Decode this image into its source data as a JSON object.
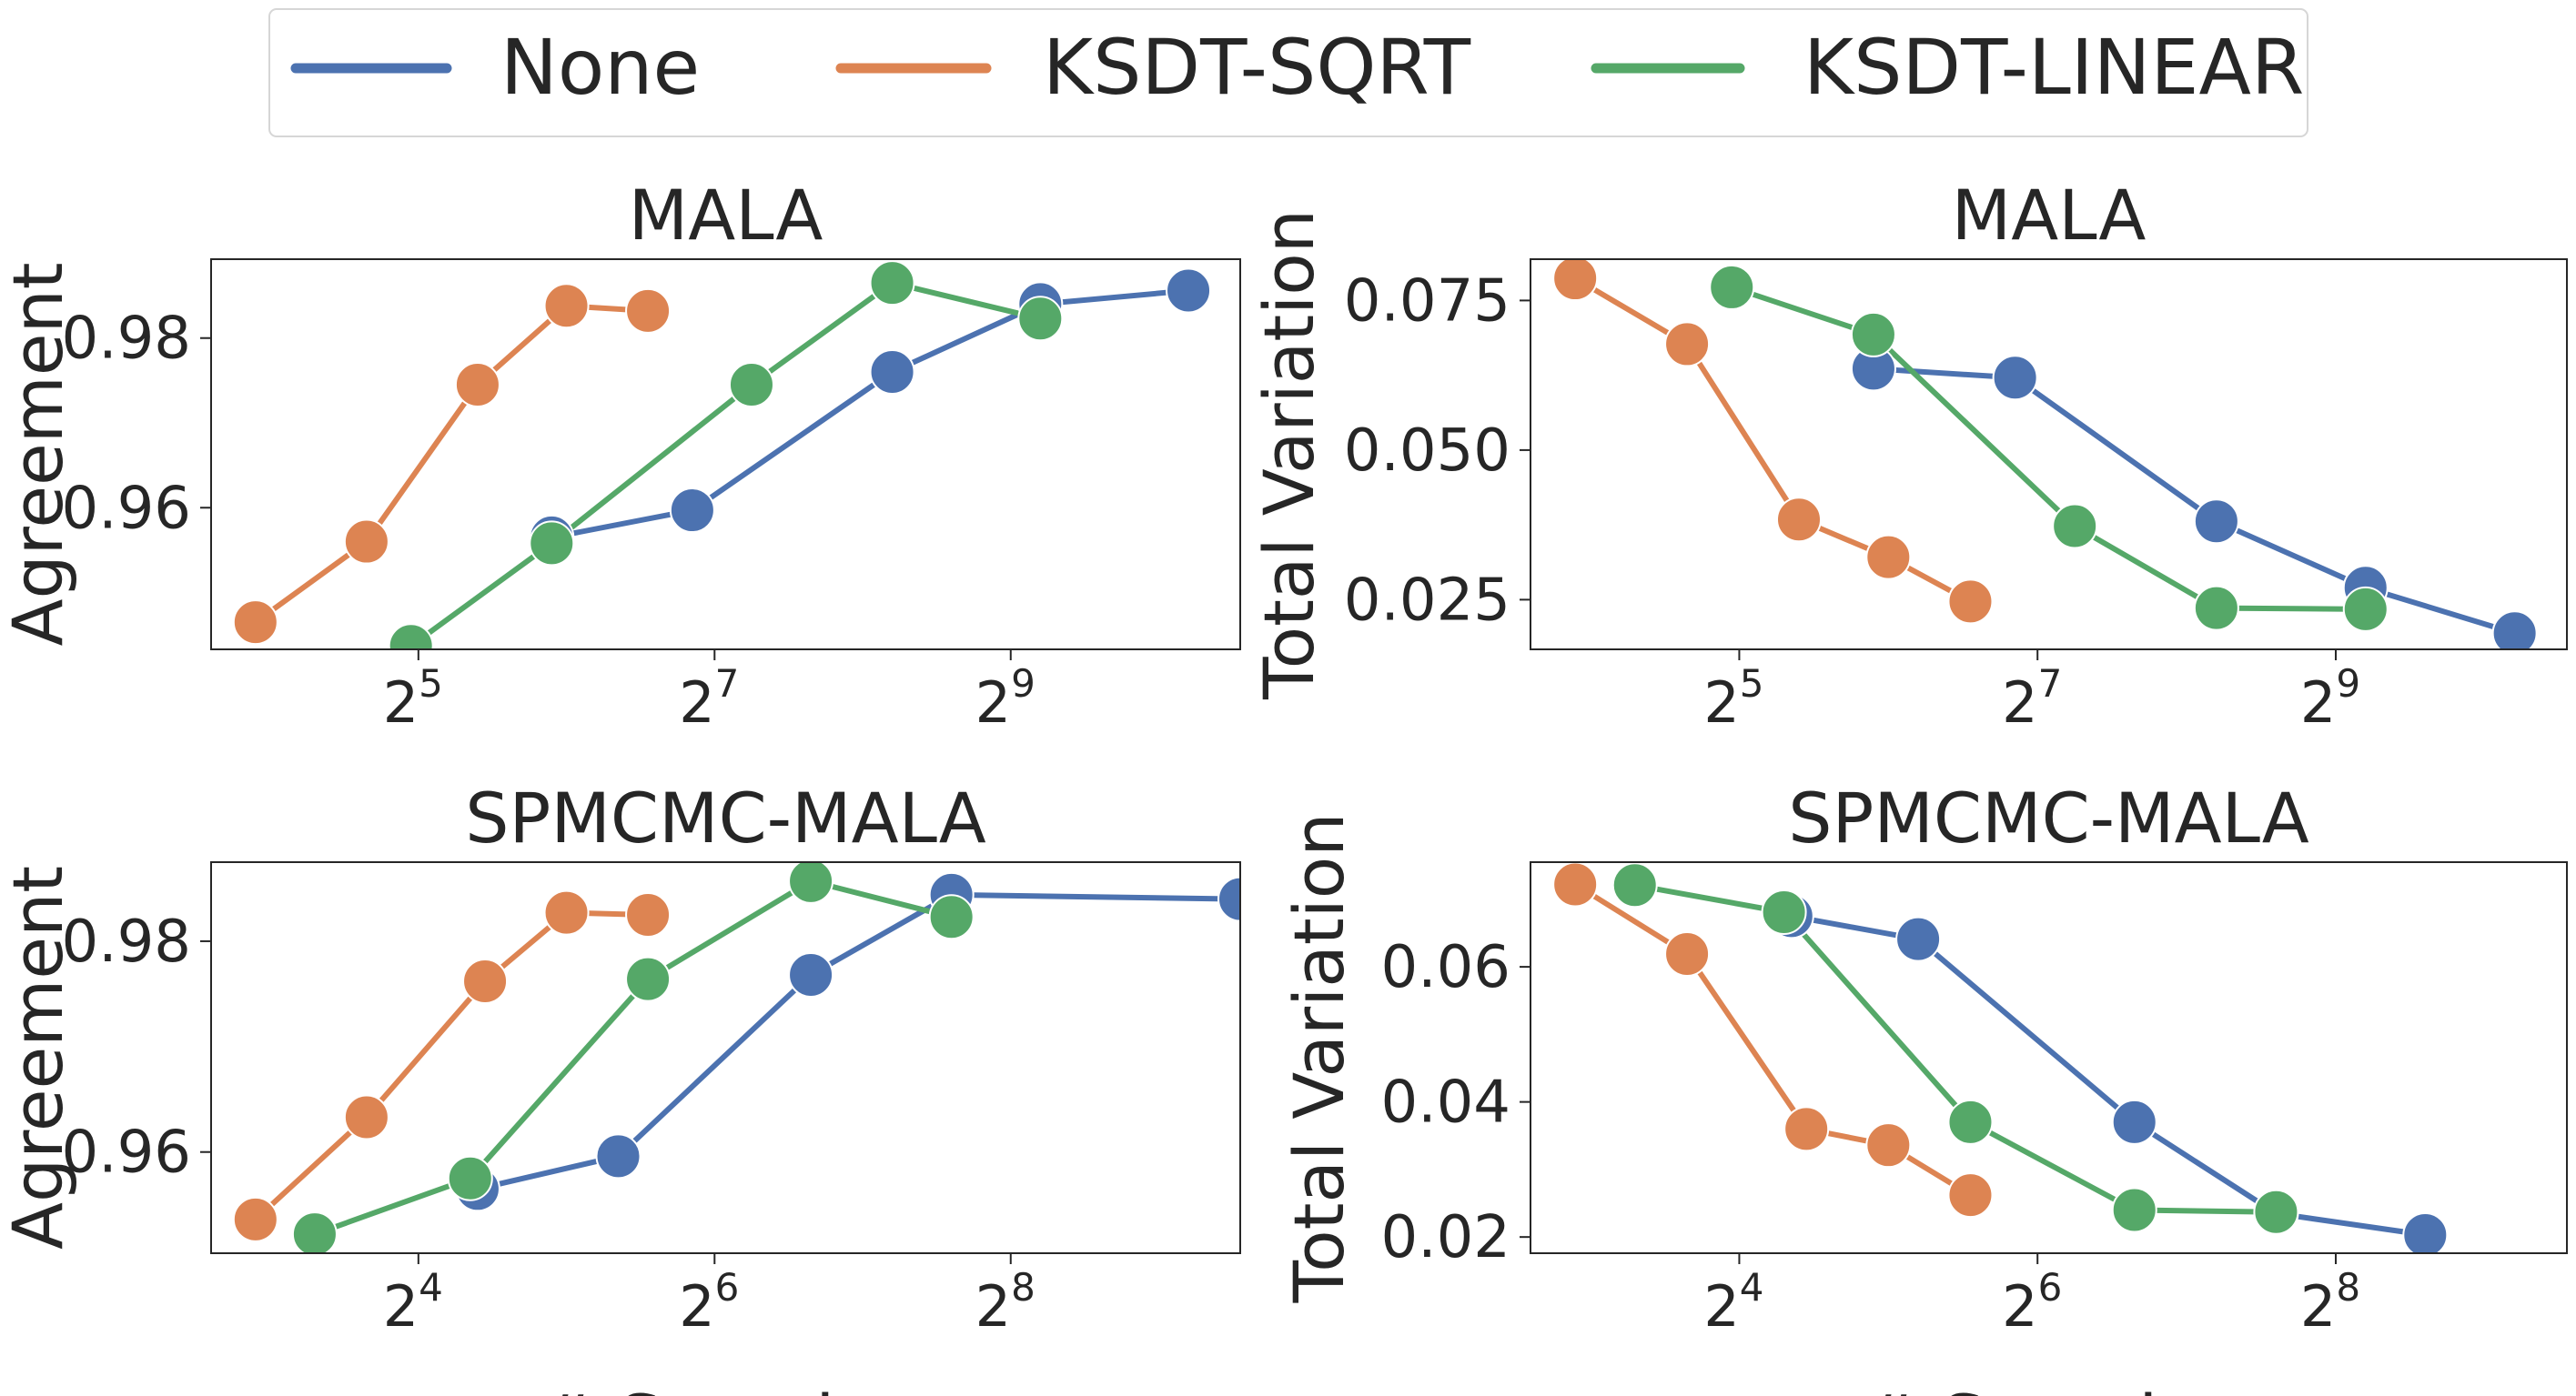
{
  "colors": {
    "None": "#4c72b0",
    "KSDT-SQRT": "#dd8452",
    "KSDT-LINEAR": "#55a868",
    "axis": "#262626"
  },
  "legend": [
    {
      "label": "None",
      "color_key": "None"
    },
    {
      "label": "KSDT-SQRT",
      "color_key": "KSDT-SQRT"
    },
    {
      "label": "KSDT-LINEAR",
      "color_key": "KSDT-LINEAR"
    }
  ],
  "chart_data": [
    {
      "type": "line",
      "title": "MALA",
      "xlabel": "",
      "ylabel": "Agreement",
      "xscale": "log2",
      "xlim_log2": [
        3.6,
        10.55
      ],
      "ylim": [
        0.9433,
        0.9893
      ],
      "yticks": [
        0.96,
        0.98
      ],
      "ytick_labels": [
        "0.96",
        "0.98"
      ],
      "xticks": [
        {
          "base": "2",
          "exp": "5",
          "log2": 5
        },
        {
          "base": "2",
          "exp": "7",
          "log2": 7
        },
        {
          "base": "2",
          "exp": "9",
          "log2": 9
        }
      ],
      "series": [
        {
          "name": "None",
          "x_log2": [
            5.9,
            6.85,
            8.2,
            9.2,
            10.2
          ],
          "y": [
            0.9565,
            0.9597,
            0.976,
            0.984,
            0.9856
          ]
        },
        {
          "name": "KSDT-SQRT",
          "x_log2": [
            3.9,
            4.65,
            5.4,
            6.0,
            6.55
          ],
          "y": [
            0.9465,
            0.956,
            0.9745,
            0.9838,
            0.9832
          ]
        },
        {
          "name": "KSDT-LINEAR",
          "x_log2": [
            4.95,
            5.9,
            7.25,
            8.2,
            9.2
          ],
          "y": [
            0.9437,
            0.9558,
            0.9745,
            0.9865,
            0.9823
          ]
        }
      ]
    },
    {
      "type": "line",
      "title": "MALA",
      "xlabel": "",
      "ylabel": "Total Variation",
      "xscale": "log2",
      "xlim_log2": [
        3.6,
        10.55
      ],
      "ylim": [
        0.0167,
        0.0819
      ],
      "yticks": [
        0.025,
        0.05,
        0.075
      ],
      "ytick_labels": [
        "0.025",
        "0.050",
        "0.075"
      ],
      "xticks": [
        {
          "base": "2",
          "exp": "5",
          "log2": 5
        },
        {
          "base": "2",
          "exp": "7",
          "log2": 7
        },
        {
          "base": "2",
          "exp": "9",
          "log2": 9
        }
      ],
      "series": [
        {
          "name": "None",
          "x_log2": [
            5.9,
            6.85,
            8.2,
            9.2,
            10.2
          ],
          "y": [
            0.0636,
            0.0621,
            0.0381,
            0.027,
            0.0194
          ]
        },
        {
          "name": "KSDT-SQRT",
          "x_log2": [
            3.9,
            4.65,
            5.4,
            6.0,
            6.55
          ],
          "y": [
            0.0787,
            0.0677,
            0.0384,
            0.0321,
            0.0247
          ]
        },
        {
          "name": "KSDT-LINEAR",
          "x_log2": [
            4.95,
            5.9,
            7.25,
            8.2,
            9.2
          ],
          "y": [
            0.0772,
            0.0693,
            0.0373,
            0.0236,
            0.0234
          ]
        }
      ]
    },
    {
      "type": "line",
      "title": "SPMCMC-MALA",
      "xlabel": "# Samples",
      "ylabel": "Agreement",
      "xscale": "log2",
      "xlim_log2": [
        2.6,
        9.55
      ],
      "ylim": [
        0.9504,
        0.9875
      ],
      "yticks": [
        0.96,
        0.98
      ],
      "ytick_labels": [
        "0.96",
        "0.98"
      ],
      "xticks": [
        {
          "base": "2",
          "exp": "4",
          "log2": 4
        },
        {
          "base": "2",
          "exp": "6",
          "log2": 6
        },
        {
          "base": "2",
          "exp": "8",
          "log2": 8
        }
      ],
      "series": [
        {
          "name": "None",
          "x_log2": [
            4.4,
            5.35,
            6.65,
            7.6,
            9.55
          ],
          "y": [
            0.9565,
            0.9596,
            0.9768,
            0.9844,
            0.984
          ]
        },
        {
          "name": "KSDT-SQRT",
          "x_log2": [
            2.9,
            3.65,
            4.45,
            5.0,
            5.55
          ],
          "y": [
            0.9536,
            0.9633,
            0.9762,
            0.9827,
            0.9825
          ]
        },
        {
          "name": "KSDT-LINEAR",
          "x_log2": [
            3.3,
            4.35,
            5.55,
            6.65,
            7.6
          ],
          "y": [
            0.9522,
            0.9575,
            0.9764,
            0.9857,
            0.9823
          ]
        }
      ]
    },
    {
      "type": "line",
      "title": "SPMCMC-MALA",
      "xlabel": "# Samples",
      "ylabel": "Total Variation",
      "xscale": "log2",
      "xlim_log2": [
        2.6,
        9.55
      ],
      "ylim": [
        0.0176,
        0.0755
      ],
      "yticks": [
        0.02,
        0.04,
        0.06
      ],
      "ytick_labels": [
        "0.02",
        "0.04",
        "0.06"
      ],
      "xticks": [
        {
          "base": "2",
          "exp": "4",
          "log2": 4
        },
        {
          "base": "2",
          "exp": "6",
          "log2": 6
        },
        {
          "base": "2",
          "exp": "8",
          "log2": 8
        }
      ],
      "series": [
        {
          "name": "None",
          "x_log2": [
            4.35,
            5.2,
            6.65,
            7.6,
            8.6
          ],
          "y": [
            0.0675,
            0.0641,
            0.037,
            0.0235,
            0.0203
          ]
        },
        {
          "name": "KSDT-SQRT",
          "x_log2": [
            2.9,
            3.65,
            4.45,
            5.0,
            5.55
          ],
          "y": [
            0.0722,
            0.0619,
            0.036,
            0.0336,
            0.0262
          ]
        },
        {
          "name": "KSDT-LINEAR",
          "x_log2": [
            3.3,
            4.3,
            5.55,
            6.65,
            7.6
          ],
          "y": [
            0.0721,
            0.0681,
            0.037,
            0.024,
            0.0237
          ]
        }
      ]
    }
  ]
}
